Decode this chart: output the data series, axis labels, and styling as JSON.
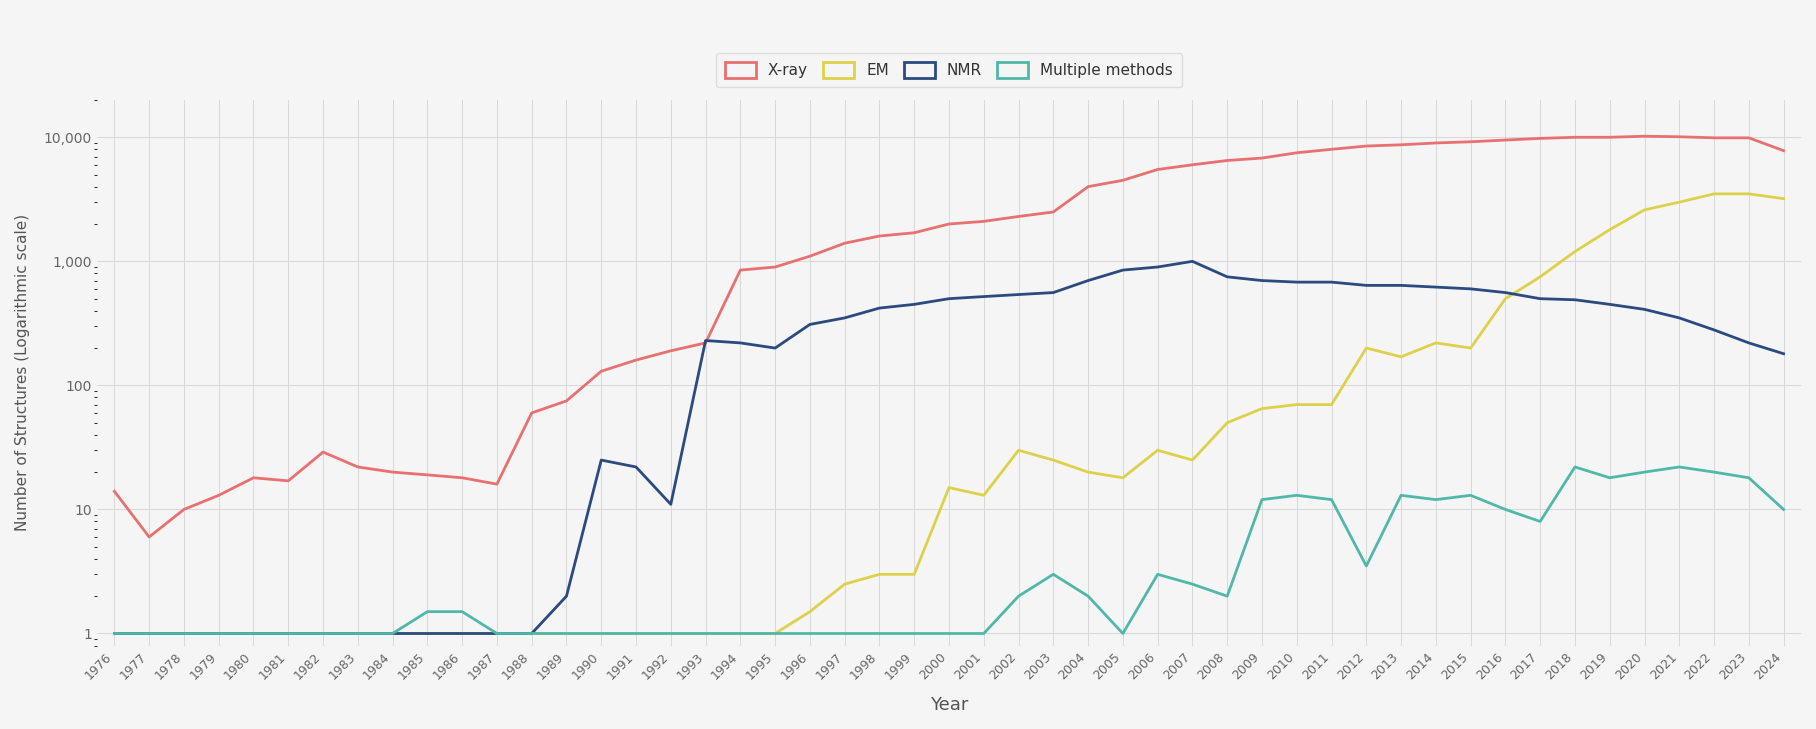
{
  "years": [
    1976,
    1977,
    1978,
    1979,
    1980,
    1981,
    1982,
    1983,
    1984,
    1985,
    1986,
    1987,
    1988,
    1989,
    1990,
    1991,
    1992,
    1993,
    1994,
    1995,
    1996,
    1997,
    1998,
    1999,
    2000,
    2001,
    2002,
    2003,
    2004,
    2005,
    2006,
    2007,
    2008,
    2009,
    2010,
    2011,
    2012,
    2013,
    2014,
    2015,
    2016,
    2017,
    2018,
    2019,
    2020,
    2021,
    2022,
    2023,
    2024
  ],
  "xray": [
    14,
    6,
    10,
    13,
    18,
    17,
    29,
    22,
    20,
    19,
    18,
    16,
    60,
    75,
    130,
    160,
    190,
    220,
    850,
    900,
    1100,
    1400,
    1600,
    1700,
    2000,
    2100,
    2300,
    2500,
    4000,
    4500,
    5500,
    6000,
    6500,
    6800,
    7500,
    8000,
    8500,
    8700,
    9000,
    9200,
    9500,
    9800,
    10000,
    10000,
    10200,
    10100,
    9900,
    9900,
    7800
  ],
  "em": [
    1,
    1,
    1,
    1,
    1,
    1,
    1,
    1,
    1,
    1,
    1,
    1,
    1,
    1,
    1,
    1,
    1,
    1,
    1,
    1,
    1.5,
    2.5,
    3,
    3,
    15,
    13,
    30,
    25,
    20,
    18,
    30,
    25,
    50,
    65,
    70,
    70,
    200,
    170,
    220,
    200,
    500,
    750,
    1200,
    1800,
    2600,
    3000,
    3500,
    3500,
    3200
  ],
  "nmr": [
    1,
    1,
    1,
    1,
    1,
    1,
    1,
    1,
    1,
    1,
    1,
    1,
    1,
    2,
    25,
    22,
    11,
    230,
    220,
    200,
    310,
    350,
    420,
    450,
    500,
    520,
    540,
    560,
    700,
    850,
    900,
    1000,
    750,
    700,
    680,
    680,
    640,
    640,
    620,
    600,
    560,
    500,
    490,
    450,
    410,
    350,
    280,
    220,
    180
  ],
  "multi": [
    1,
    1,
    1,
    1,
    1,
    1,
    1,
    1,
    1,
    1.5,
    1.5,
    1,
    1,
    1,
    1,
    1,
    1,
    1,
    1,
    1,
    1,
    1,
    1,
    1,
    1,
    1,
    2,
    3,
    2,
    1,
    3,
    2.5,
    2,
    12,
    13,
    12,
    3.5,
    13,
    12,
    13,
    10,
    8,
    22,
    18,
    20,
    22,
    20,
    18,
    10
  ],
  "xray_color": "#e87070",
  "em_color": "#ddd04a",
  "nmr_color": "#2a4a80",
  "multi_color": "#50b8a8",
  "bg_color": "#f5f5f5",
  "grid_color": "#d8d8d8",
  "xlabel": "Year",
  "ylabel": "Number of Structures (Logarithmic scale)",
  "ylim_min": 0.8,
  "ylim_max": 20000,
  "linewidth": 2.0
}
